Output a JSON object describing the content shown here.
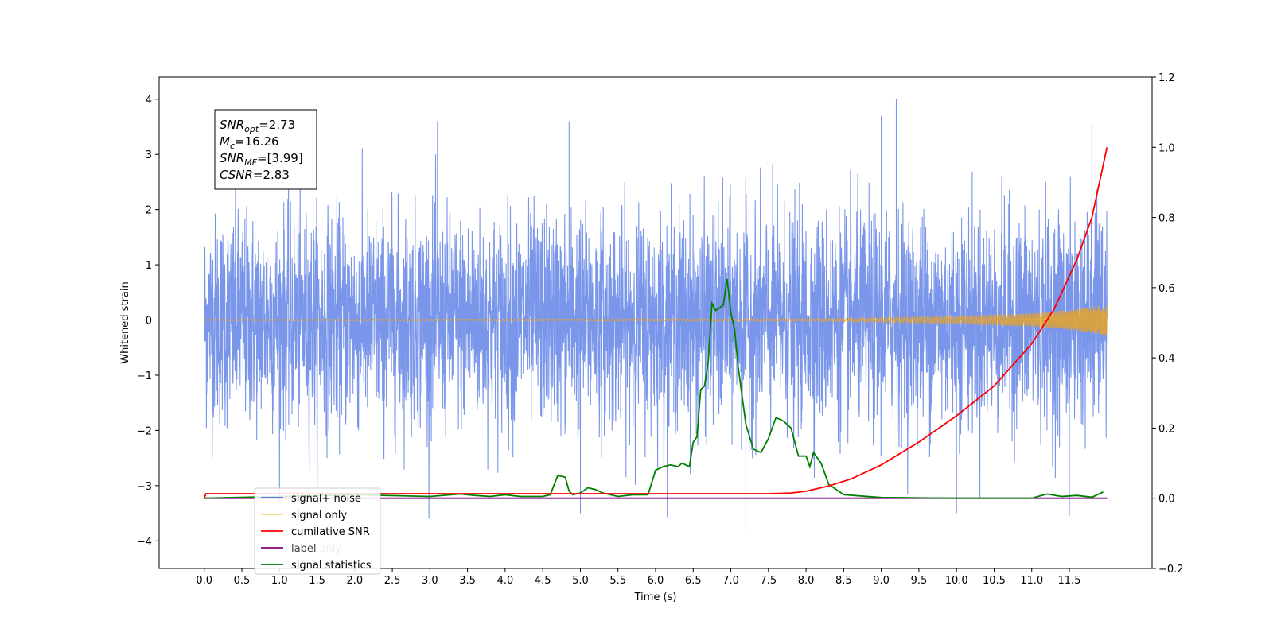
{
  "chart_data": {
    "type": "line",
    "xlabel": "Time (s)",
    "ylabel": "Whitened strain",
    "xlim": [
      -0.6,
      12.6
    ],
    "ylim": [
      -4.5,
      4.4
    ],
    "y2lim": [
      -0.2,
      1.2
    ],
    "x_ticks": [
      0.0,
      0.5,
      1.0,
      1.5,
      2.0,
      2.5,
      3.0,
      3.5,
      4.0,
      4.5,
      5.0,
      5.5,
      6.0,
      6.5,
      7.0,
      7.5,
      8.0,
      8.5,
      9.0,
      9.5,
      10.0,
      10.5,
      11.0,
      11.5
    ],
    "x_tick_labels": [
      "0.0",
      "0.5",
      "1.0",
      "1.5",
      "2.0",
      "2.5",
      "3.0",
      "3.5",
      "4.0",
      "4.5",
      "5.0",
      "5.5",
      "6.0",
      "6.5",
      "7.0",
      "7.5",
      "8.0",
      "8.5",
      "9.0",
      "9.5",
      "10.0",
      "10.5",
      "11.0",
      "11.5"
    ],
    "y_ticks": [
      -4,
      -3,
      -2,
      -1,
      0,
      1,
      2,
      3,
      4
    ],
    "y_tick_labels": [
      "−4",
      "−3",
      "−2",
      "−1",
      "0",
      "1",
      "2",
      "3",
      "4"
    ],
    "y2_ticks": [
      -0.2,
      0.0,
      0.2,
      0.4,
      0.6,
      0.8,
      1.0,
      1.2
    ],
    "y2_tick_labels": [
      "−0.2",
      "0.0",
      "0.2",
      "0.4",
      "0.6",
      "0.8",
      "1.0",
      "1.2"
    ],
    "annotation": {
      "lines": [
        {
          "sym": "SNR",
          "sub": "opt",
          "value": "=2.73"
        },
        {
          "sym": "M",
          "sub": "c",
          "value": "=16.26"
        },
        {
          "sym": "SNR",
          "sub": "MF",
          "value": "=[3.99]"
        },
        {
          "sym": "CSNR",
          "sub": "",
          "value": "=2.83"
        }
      ]
    },
    "legend": {
      "position": "lower-left",
      "entries": [
        {
          "label": "signal+ noise",
          "color": "#4169e1"
        },
        {
          "label": "signal only",
          "color": "#ffc04d"
        },
        {
          "label": "cumilative SNR",
          "color": "#ff0000"
        },
        {
          "label": "label",
          "color": "#800080"
        },
        {
          "label": "signal statistics",
          "color": "#008000"
        }
      ],
      "hidden_label_behind": "label only"
    },
    "series": [
      {
        "name": "signal+ noise",
        "axis": "left",
        "color": "#4169e1",
        "x_range": [
          0.0,
          12.0
        ],
        "envelope": "noise, mostly within ±2, peaks to about ±3.5, max about 4.0 near t=9.2, min about −3.8 near t=7.2"
      },
      {
        "name": "signal only",
        "axis": "left",
        "color": "#ffa500",
        "x": [
          0.0,
          8.0,
          9.0,
          10.0,
          11.0,
          11.5,
          12.0
        ],
        "amplitude": [
          0.01,
          0.02,
          0.04,
          0.07,
          0.12,
          0.18,
          0.28
        ]
      },
      {
        "name": "cumilative SNR",
        "axis": "right",
        "color": "#ff0000",
        "x": [
          0.0,
          0.02,
          7.5,
          7.8,
          8.0,
          8.3,
          8.6,
          9.0,
          9.5,
          10.0,
          10.5,
          11.0,
          11.3,
          11.6,
          11.8,
          12.0
        ],
        "y": [
          -0.0,
          0.013,
          0.013,
          0.015,
          0.02,
          0.035,
          0.055,
          0.095,
          0.16,
          0.235,
          0.32,
          0.44,
          0.54,
          0.68,
          0.8,
          1.0
        ]
      },
      {
        "name": "label",
        "axis": "right",
        "color": "#800080",
        "x": [
          0.0,
          12.0
        ],
        "y": [
          0.0,
          0.0
        ]
      },
      {
        "name": "signal statistics",
        "axis": "right",
        "color": "#008000",
        "x": [
          0.0,
          1.0,
          2.0,
          3.0,
          3.4,
          3.6,
          3.8,
          4.0,
          4.2,
          4.5,
          4.6,
          4.7,
          4.8,
          4.85,
          4.9,
          5.0,
          5.1,
          5.2,
          5.3,
          5.5,
          5.7,
          5.9,
          6.0,
          6.1,
          6.2,
          6.3,
          6.35,
          6.45,
          6.5,
          6.55,
          6.6,
          6.65,
          6.7,
          6.75,
          6.8,
          6.9,
          6.95,
          7.0,
          7.05,
          7.1,
          7.2,
          7.3,
          7.4,
          7.5,
          7.6,
          7.7,
          7.8,
          7.9,
          8.0,
          8.05,
          8.1,
          8.2,
          8.3,
          8.5,
          9.0,
          9.5,
          10.0,
          10.5,
          11.0,
          11.2,
          11.4,
          11.6,
          11.8,
          11.95
        ],
        "y": [
          0.0,
          0.005,
          0.01,
          0.005,
          0.012,
          0.008,
          0.005,
          0.01,
          0.005,
          0.005,
          0.01,
          0.065,
          0.06,
          0.02,
          0.01,
          0.015,
          0.03,
          0.025,
          0.015,
          0.005,
          0.01,
          0.01,
          0.08,
          0.09,
          0.095,
          0.09,
          0.1,
          0.09,
          0.16,
          0.175,
          0.31,
          0.32,
          0.39,
          0.555,
          0.535,
          0.55,
          0.625,
          0.53,
          0.48,
          0.37,
          0.21,
          0.14,
          0.13,
          0.17,
          0.23,
          0.22,
          0.2,
          0.12,
          0.12,
          0.09,
          0.13,
          0.1,
          0.04,
          0.01,
          0.002,
          0.001,
          0.0,
          0.0,
          0.0,
          0.012,
          0.005,
          0.008,
          0.003,
          0.018
        ]
      }
    ]
  }
}
